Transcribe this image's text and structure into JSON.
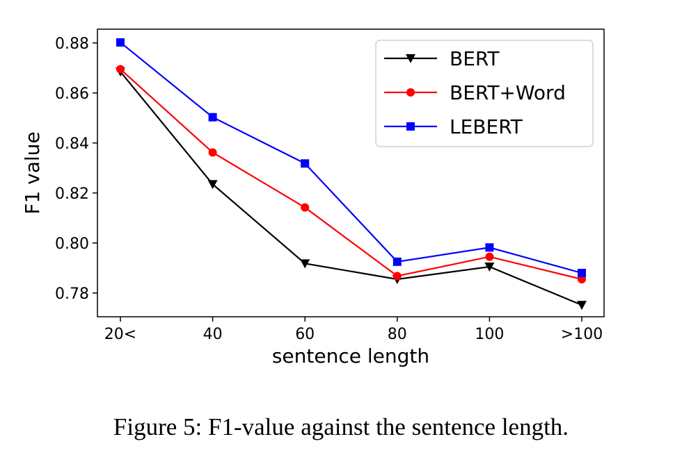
{
  "chart_data": {
    "type": "line",
    "categories": [
      "20<",
      "40",
      "60",
      "80",
      "100",
      ">100"
    ],
    "series": [
      {
        "name": "BERT",
        "values": [
          0.8685,
          0.8235,
          0.7918,
          0.7855,
          0.7905,
          0.7752
        ],
        "color": "#000000",
        "marker": "triangle-down"
      },
      {
        "name": "BERT+Word",
        "values": [
          0.8695,
          0.8362,
          0.8142,
          0.7868,
          0.7945,
          0.7855
        ],
        "color": "#ff0000",
        "marker": "circle"
      },
      {
        "name": "LEBERT",
        "values": [
          0.8802,
          0.8503,
          0.8318,
          0.7925,
          0.7982,
          0.788
        ],
        "color": "#0000ff",
        "marker": "square"
      }
    ],
    "xlabel": "sentence length",
    "ylabel": "F1 value",
    "ylim": [
      0.7705,
      0.8855
    ],
    "yticks": [
      "0.78",
      "0.80",
      "0.82",
      "0.84",
      "0.86",
      "0.88"
    ],
    "grid": false,
    "legend_position": "top-right"
  },
  "caption": "Figure 5: F1-value against the sentence length."
}
